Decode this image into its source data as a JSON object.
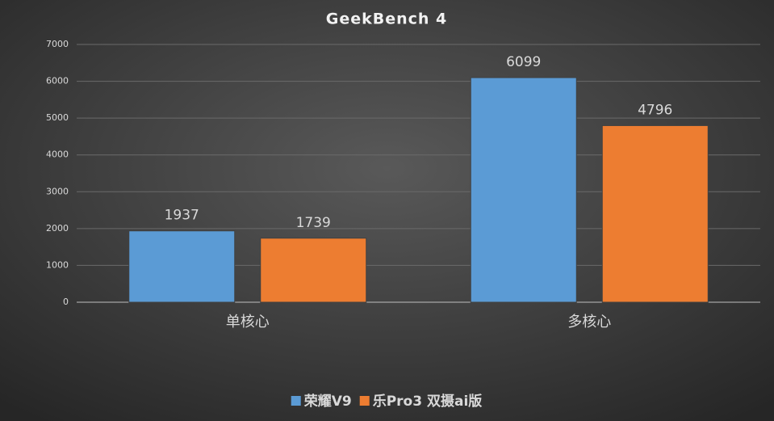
{
  "chart_data": {
    "type": "bar",
    "title": "GeekBench 4",
    "categories": [
      "单核心",
      "多核心"
    ],
    "series": [
      {
        "name": "荣耀V9",
        "color": "#5b9bd5",
        "values": [
          1937,
          6099
        ]
      },
      {
        "name": "乐Pro3 双摄ai版",
        "color": "#ed7d31",
        "values": [
          1739,
          4796
        ]
      }
    ],
    "ylim": [
      0,
      7000
    ],
    "yticks": [
      0,
      1000,
      2000,
      3000,
      4000,
      5000,
      6000,
      7000
    ],
    "grid": true
  }
}
